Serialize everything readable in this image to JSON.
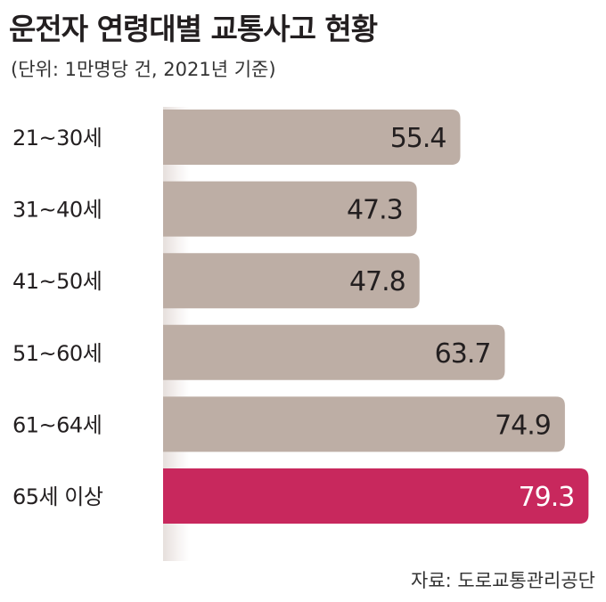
{
  "title": "운전자 연령대별 교통사고 현황",
  "subtitle": "(단위: 1만명당 건, 2021년 기준)",
  "source": "자료: 도로교통관리공단",
  "colors": {
    "bar_default": "#bdaea5",
    "bar_highlight": "#c8285d",
    "value_default": "#231f20",
    "value_highlight": "#ffffff"
  },
  "chart_data": {
    "type": "bar",
    "orientation": "horizontal",
    "title": "운전자 연령대별 교통사고 현황",
    "subtitle": "(단위: 1만명당 건, 2021년 기준)",
    "categories": [
      "21~30세",
      "31~40세",
      "41~50세",
      "51~60세",
      "61~64세",
      "65세 이상"
    ],
    "values": [
      55.4,
      47.3,
      47.8,
      63.7,
      74.9,
      79.3
    ],
    "highlight_index": 5,
    "data_labels": true,
    "grid": false,
    "legend": "none"
  }
}
